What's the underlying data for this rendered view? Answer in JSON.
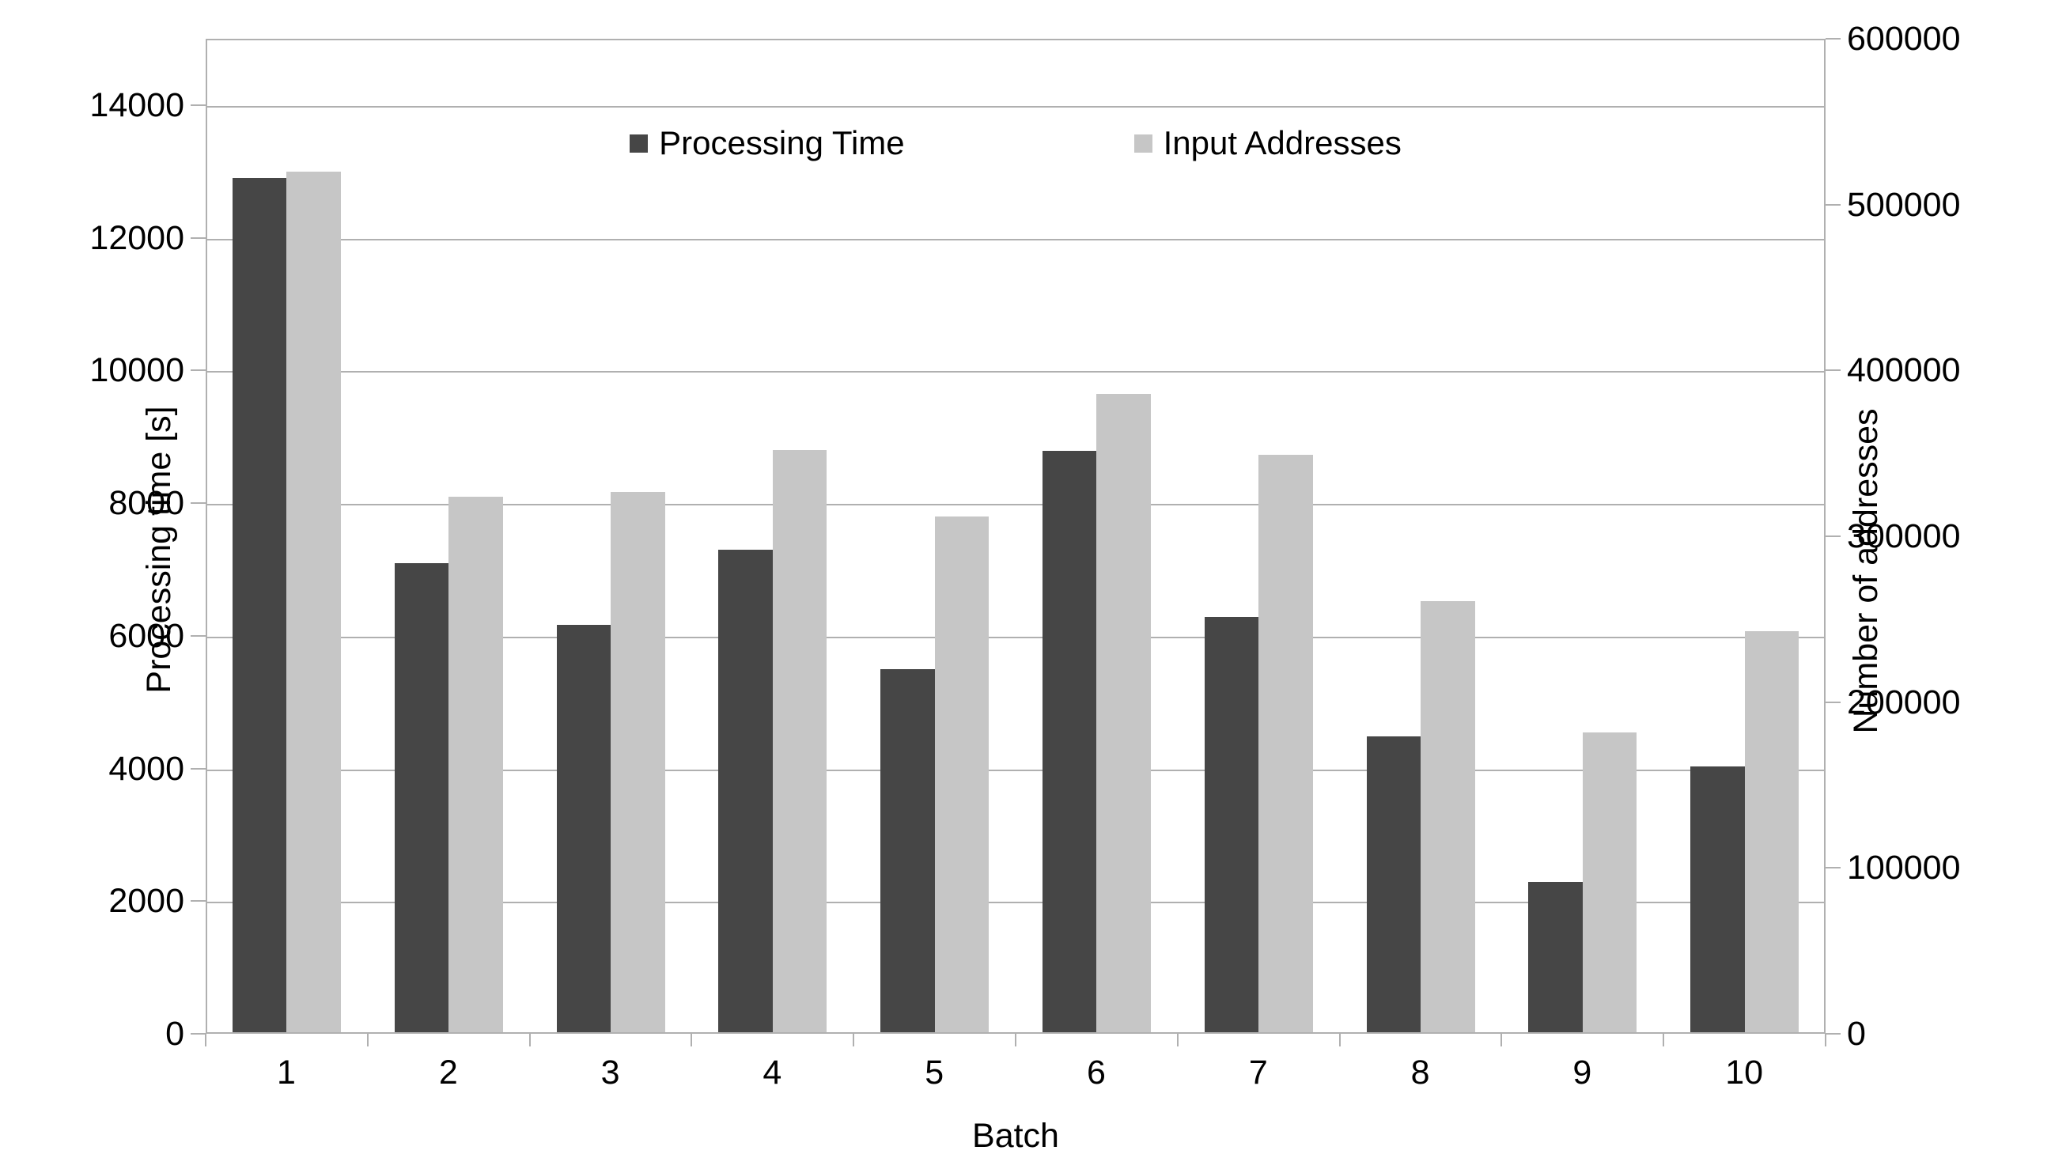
{
  "chart_data": {
    "type": "bar",
    "title": "",
    "categories": [
      "1",
      "2",
      "3",
      "4",
      "5",
      "6",
      "7",
      "8",
      "9",
      "10"
    ],
    "series": [
      {
        "name": "Processing Time",
        "axis": "left",
        "color": "#464646",
        "values": [
          12880,
          7070,
          6140,
          7270,
          5470,
          8760,
          6260,
          4460,
          2270,
          4010
        ]
      },
      {
        "name": "Input Addresses",
        "axis": "right",
        "color": "#c6c6c6",
        "values": [
          519000,
          323000,
          326000,
          351000,
          311000,
          385000,
          348000,
          260000,
          181000,
          242000
        ]
      }
    ],
    "x_axis": {
      "label": "Batch"
    },
    "left_axis": {
      "label": "Processing time [s]",
      "min": 0,
      "max": 15000,
      "ticks": [
        0,
        2000,
        4000,
        6000,
        8000,
        10000,
        12000,
        14000
      ]
    },
    "right_axis": {
      "label": "Number of addresses",
      "min": 0,
      "max": 600000,
      "ticks": [
        0,
        100000,
        200000,
        300000,
        400000,
        500000,
        600000
      ]
    },
    "legend_position": "top-center",
    "grid": "horizontal-left-axis-only"
  },
  "colors": {
    "grid": "#b0b0b0",
    "bar_dark": "#464646",
    "bar_light": "#c6c6c6",
    "text": "#000000",
    "background": "#ffffff"
  }
}
